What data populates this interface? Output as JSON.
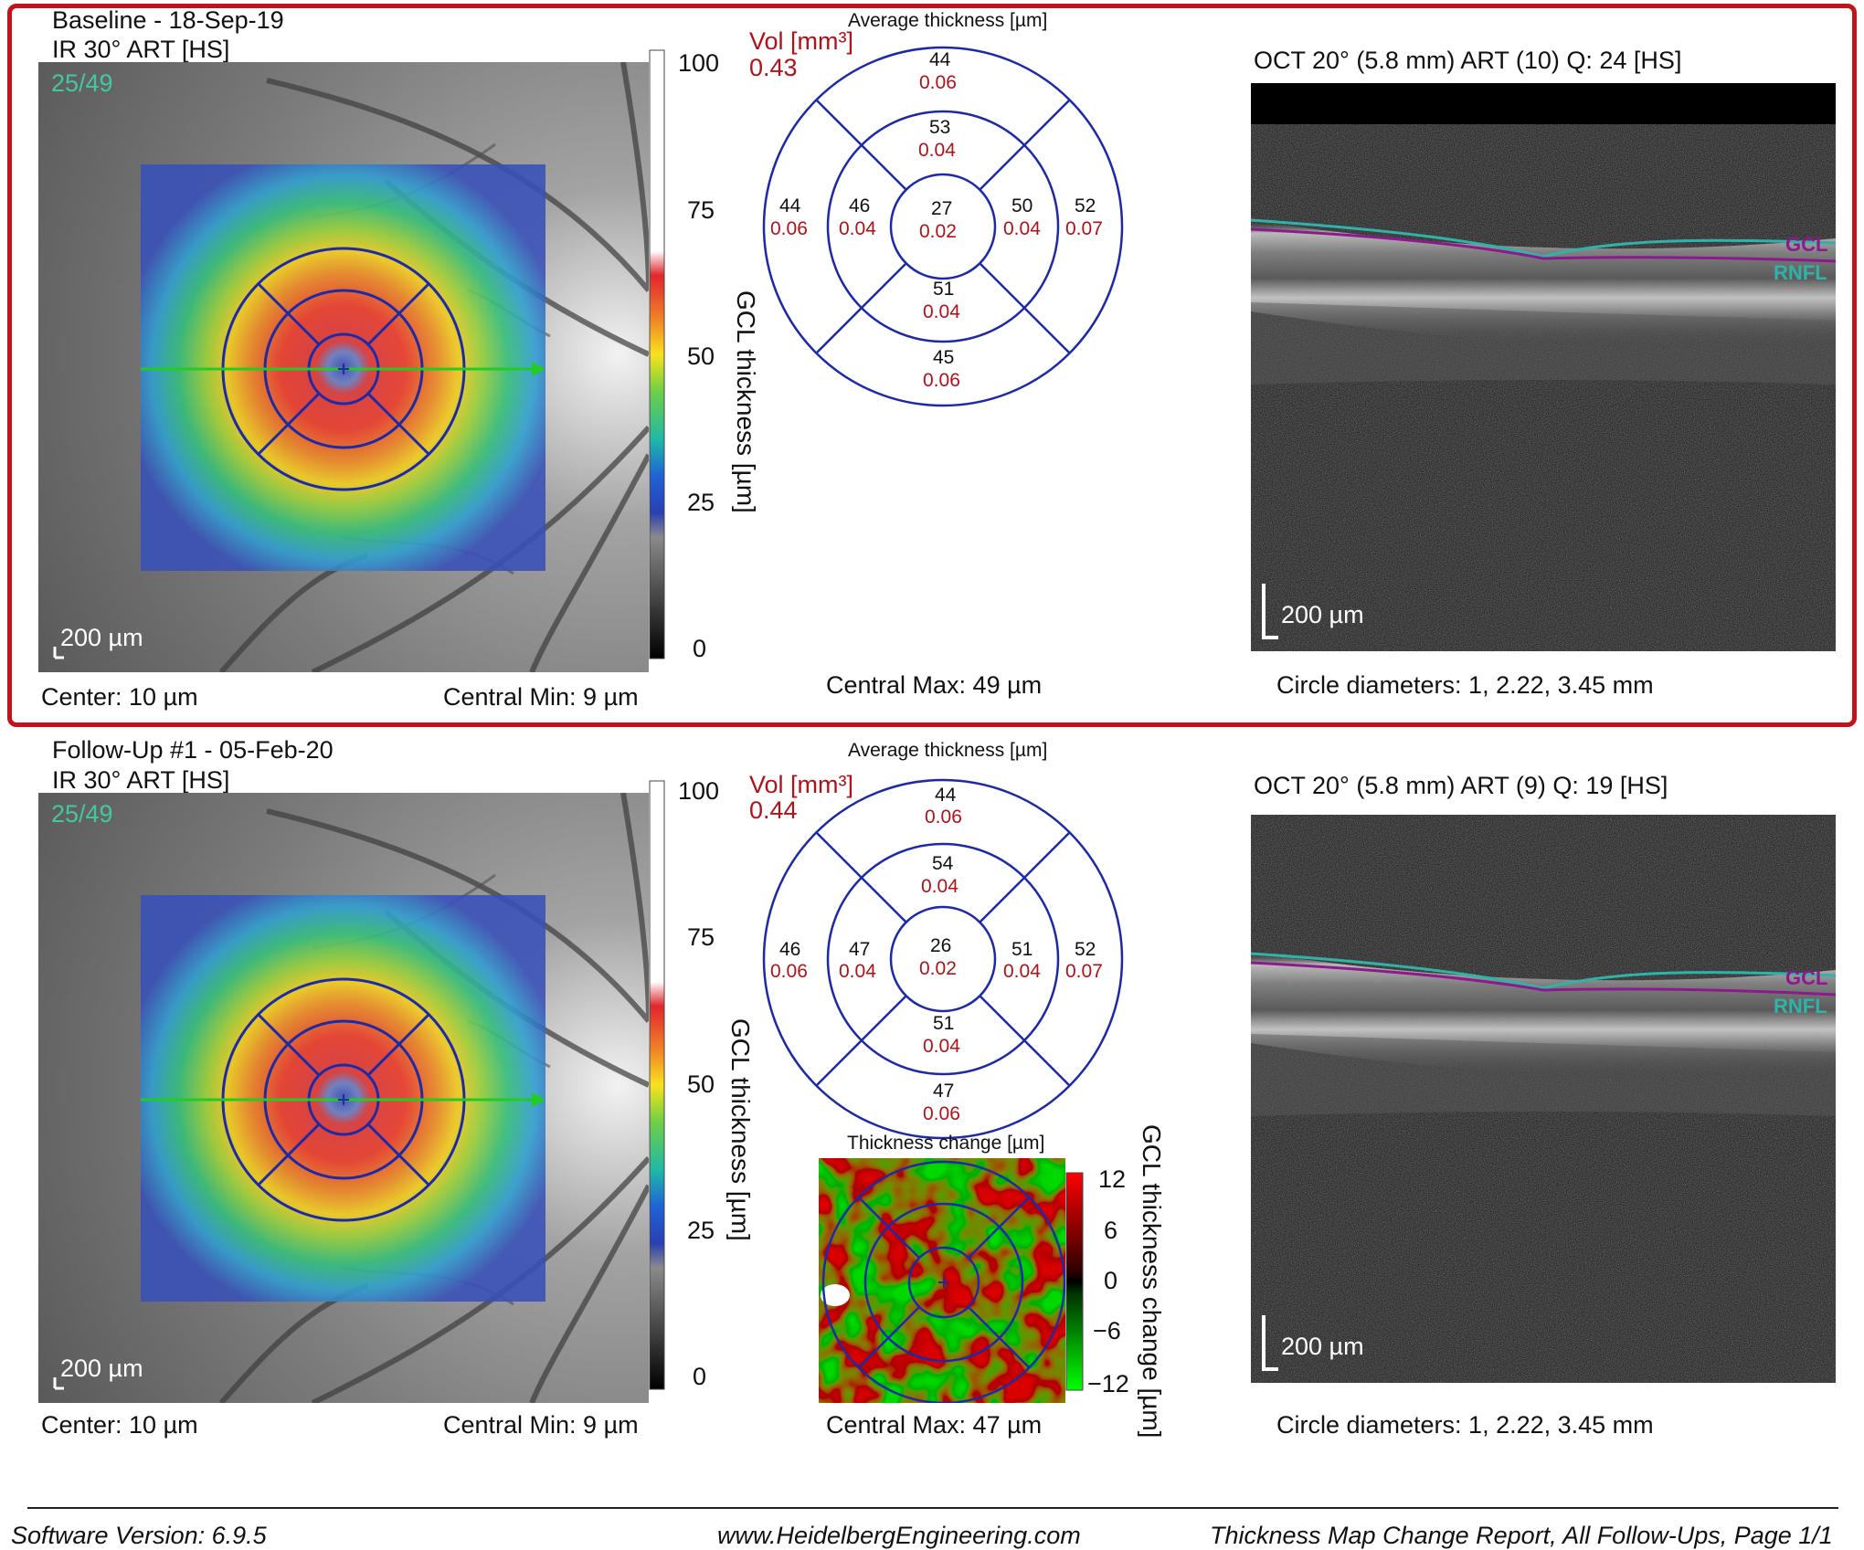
{
  "baseline": {
    "title": "Baseline - 18-Sep-19",
    "ir_label": "IR 30° ART [HS]",
    "frame_count": "25/49",
    "scale_label": "200 µm",
    "center": "Center: 10 µm",
    "central_min": "Central Min: 9 µm",
    "central_max": "Central Max: 49 µm",
    "colorbar": {
      "ticks": [
        "100",
        "75",
        "50",
        "25",
        "0"
      ],
      "label": "GCL thickness [µm]"
    },
    "sector": {
      "heading": "Average thickness [µm]",
      "vol_label": "Vol [mm³]",
      "vol_value": "0.43",
      "cells": [
        {
          "id": "outer-superior",
          "thick": "44",
          "vol": "0.06"
        },
        {
          "id": "inner-superior",
          "thick": "53",
          "vol": "0.04"
        },
        {
          "id": "outer-temporal",
          "thick": "44",
          "vol": "0.06"
        },
        {
          "id": "inner-temporal",
          "thick": "46",
          "vol": "0.04"
        },
        {
          "id": "center",
          "thick": "27",
          "vol": "0.02"
        },
        {
          "id": "inner-nasal",
          "thick": "50",
          "vol": "0.04"
        },
        {
          "id": "outer-nasal",
          "thick": "52",
          "vol": "0.07"
        },
        {
          "id": "inner-inferior",
          "thick": "51",
          "vol": "0.04"
        },
        {
          "id": "outer-inferior",
          "thick": "45",
          "vol": "0.06"
        }
      ]
    },
    "oct": {
      "title": "OCT 20° (5.8 mm) ART (10) Q: 24 [HS]",
      "scale_label": "200 µm",
      "gcl_label": "GCL",
      "rnfl_label": "RNFL",
      "circle_diameters": "Circle diameters: 1, 2.22, 3.45 mm"
    }
  },
  "followup": {
    "title": "Follow-Up #1 - 05-Feb-20",
    "ir_label": "IR 30° ART [HS]",
    "frame_count": "25/49",
    "scale_label": "200 µm",
    "center": "Center: 10 µm",
    "central_min": "Central Min: 9 µm",
    "central_max": "Central Max: 47 µm",
    "colorbar": {
      "ticks": [
        "100",
        "75",
        "50",
        "25",
        "0"
      ],
      "label": "GCL thickness [µm]"
    },
    "sector": {
      "heading": "Average thickness [µm]",
      "vol_label": "Vol [mm³]",
      "vol_value": "0.44",
      "cells": [
        {
          "id": "outer-superior",
          "thick": "44",
          "vol": "0.06"
        },
        {
          "id": "inner-superior",
          "thick": "54",
          "vol": "0.04"
        },
        {
          "id": "outer-temporal",
          "thick": "46",
          "vol": "0.06"
        },
        {
          "id": "inner-temporal",
          "thick": "47",
          "vol": "0.04"
        },
        {
          "id": "center",
          "thick": "26",
          "vol": "0.02"
        },
        {
          "id": "inner-nasal",
          "thick": "51",
          "vol": "0.04"
        },
        {
          "id": "outer-nasal",
          "thick": "52",
          "vol": "0.07"
        },
        {
          "id": "inner-inferior",
          "thick": "51",
          "vol": "0.04"
        },
        {
          "id": "outer-inferior",
          "thick": "47",
          "vol": "0.06"
        }
      ]
    },
    "change": {
      "heading": "Thickness change [µm]",
      "ticks": [
        "12",
        "6",
        "0",
        "−6",
        "−12"
      ],
      "label": "GCL thickness change [µm]"
    },
    "oct": {
      "title": "OCT 20° (5.8 mm) ART (9) Q: 19 [HS]",
      "scale_label": "200 µm",
      "gcl_label": "GCL",
      "rnfl_label": "RNFL",
      "circle_diameters": "Circle diameters: 1, 2.22, 3.45 mm"
    }
  },
  "colors": {
    "frame": "#c0141c",
    "grid_blue": "#1d2aa6",
    "gcl_line": "#8c1a8c",
    "rnfl_line": "#2fb3a8",
    "scan_line": "#22cc22",
    "volume_red": "#b0121a"
  },
  "footer": {
    "software": "Software Version: 6.9.5",
    "website": "www.HeidelbergEngineering.com",
    "report": "Thickness Map Change Report, All Follow-Ups, Page 1/1"
  }
}
